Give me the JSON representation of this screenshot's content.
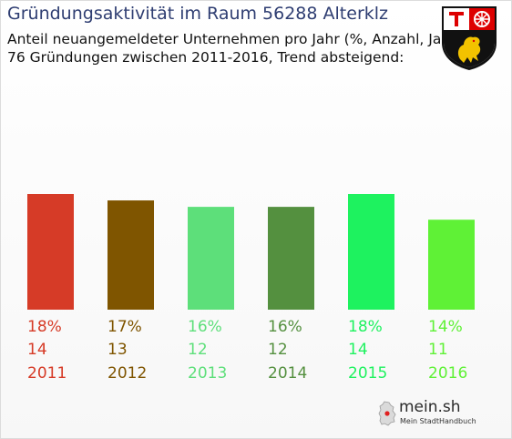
{
  "header": {
    "title": "Gründungsaktivität im Raum 56288 Alterklz",
    "subtitle_line1": "Anteil neuangemeldeter Unternehmen pro Jahr (%, Anzahl, Jahr)",
    "subtitle_line2": "76 Gründungen zwischen 2011-2016, Trend absteigend:"
  },
  "crest": {
    "icon": "rheinland-pfalz-coat-of-arms"
  },
  "logo": {
    "word": "mein.sh",
    "tagline": "Mein StadtHandbuch",
    "icon": "germany-map-icon"
  },
  "chart_data": {
    "type": "bar",
    "categories": [
      "2011",
      "2012",
      "2013",
      "2014",
      "2015",
      "2016"
    ],
    "values": [
      18,
      17,
      16,
      16,
      18,
      14
    ],
    "counts": [
      14,
      13,
      12,
      12,
      14,
      11
    ],
    "percent_labels": [
      "18%",
      "17%",
      "16%",
      "16%",
      "18%",
      "14%"
    ],
    "colors": [
      "#d63b27",
      "#7f5500",
      "#5ddf7a",
      "#54903f",
      "#1ef25f",
      "#5ff136"
    ],
    "grid": false,
    "legend": "none",
    "ylim": [
      0,
      18
    ]
  }
}
